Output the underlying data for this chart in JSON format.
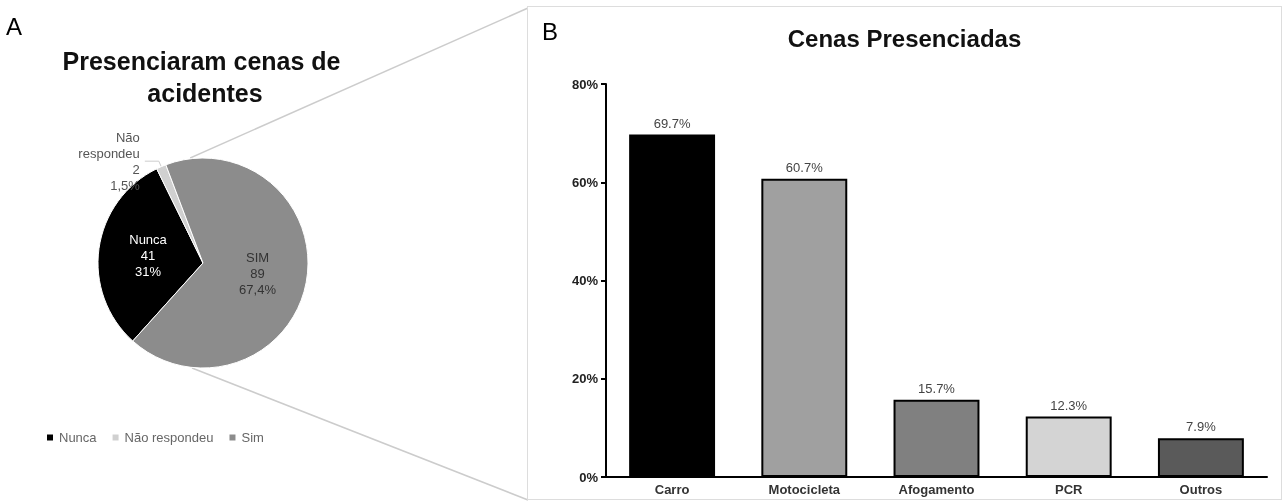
{
  "chart_data": [
    {
      "type": "pie",
      "title": "Presenciaram cenas de acidentes",
      "annotations": [
        "A"
      ],
      "categories": [
        "Nunca",
        "Não respondeu",
        "Sim"
      ],
      "values": [
        41,
        2,
        89
      ],
      "colors": [
        "#000000",
        "#d0d0d0",
        "#8c8c8c"
      ],
      "value_labels": [
        "Nunca\n41\n31%",
        "Não\nrespondeu\n2\n1,5%",
        "SIM\n89\n67,4%"
      ],
      "legend": "bottom left"
    },
    {
      "type": "bar",
      "title": "Cenas Presenciadas",
      "annotations": [
        "B"
      ],
      "categories": [
        "Carro",
        "Motocicleta",
        "Afogamento",
        "PCR",
        "Outros"
      ],
      "values": [
        69.7,
        60.7,
        15.7,
        12.3,
        7.9
      ],
      "colors": [
        "#000000",
        "#a0a0a0",
        "#808080",
        "#d4d4d4",
        "#5a5a5a"
      ],
      "value_labels": [
        "69.7%",
        "60.7%",
        "15.7%",
        "12.3%",
        "7.9%"
      ],
      "ylim": [
        0,
        80
      ],
      "yticks": [
        {
          "value": 0,
          "label": "0%"
        },
        {
          "value": 20,
          "label": "20%"
        },
        {
          "value": 40,
          "label": "40%"
        },
        {
          "value": 60,
          "label": "60%"
        },
        {
          "value": 80,
          "label": "80%"
        }
      ],
      "grid": false,
      "legend": false
    }
  ]
}
